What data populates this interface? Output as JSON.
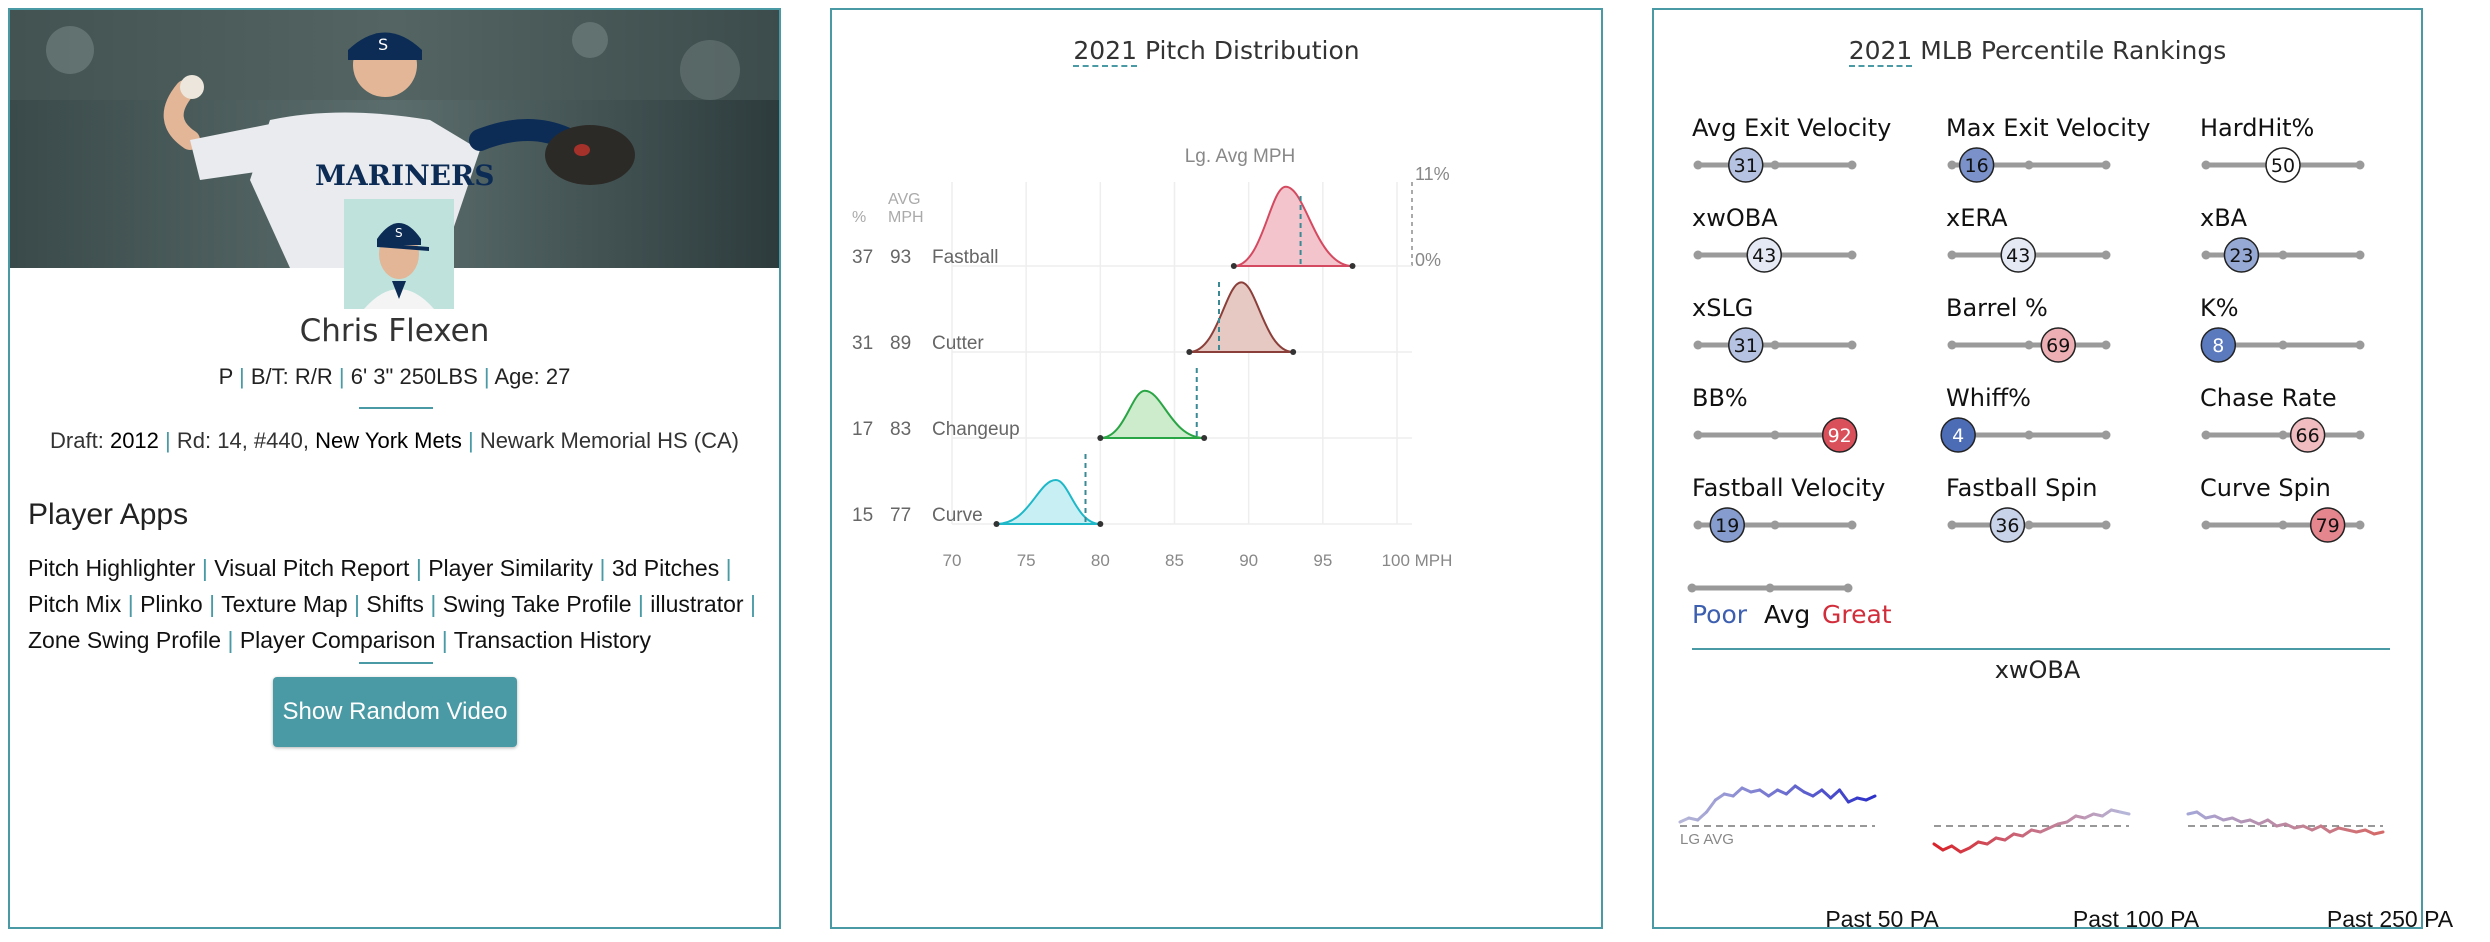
{
  "profile": {
    "name": "Chris Flexen",
    "bio": {
      "position": "P",
      "bt_label": "B/T:",
      "bt": "R/R",
      "height_weight": "6' 3\" 250LBS",
      "age_label": "Age:",
      "age": "27"
    },
    "draft": {
      "label": "Draft:",
      "year": "2012",
      "round_pick": "Rd: 14, #440,",
      "team": "New York Mets",
      "school": "Newark Memorial HS (CA)"
    },
    "jersey_text": "MARINERS",
    "cap_letter": "S"
  },
  "apps": {
    "title": "Player Apps",
    "links": [
      "Pitch Highlighter",
      "Visual Pitch Report",
      "Player Similarity",
      "3d Pitches",
      "Pitch Mix",
      "Plinko",
      "Texture Map",
      "Shifts",
      "Swing Take Profile",
      "illustrator",
      "Zone Swing Profile",
      "Player Comparison",
      "Transaction History"
    ]
  },
  "video_button": "Show Random Video",
  "pitch_dist": {
    "title_year": "2021",
    "title_rest": " Pitch Distribution",
    "lg_avg_label": "Lg. Avg MPH",
    "col_pct": "%",
    "col_avg": "AVG",
    "col_mph": "MPH",
    "scale_max": "11%",
    "scale_min": "0%",
    "xaxis_unit": "MPH"
  },
  "chart_data": {
    "type": "area",
    "title": "2021 Pitch Distribution",
    "xlabel": "MPH",
    "xlim": [
      70,
      100
    ],
    "x_ticks": [
      "70",
      "75",
      "80",
      "85",
      "90",
      "95",
      "100 MPH"
    ],
    "density_range": [
      "0%",
      "11%"
    ],
    "series": [
      {
        "name": "Fastball",
        "pct": 37,
        "avg_mph": 93,
        "lg_avg_mph": 93.5,
        "min": 89,
        "max": 97,
        "peak": 92.5,
        "color": "#d44a60",
        "fill": "#f3c4cc"
      },
      {
        "name": "Cutter",
        "pct": 31,
        "avg_mph": 89,
        "lg_avg_mph": 88,
        "min": 86,
        "max": 93,
        "peak": 89.5,
        "color": "#8b3f3a",
        "fill": "#e6c9c2"
      },
      {
        "name": "Changeup",
        "pct": 17,
        "avg_mph": 83,
        "lg_avg_mph": 86.5,
        "min": 80,
        "max": 87,
        "peak": 83,
        "color": "#2aa545",
        "fill": "#cdeccb"
      },
      {
        "name": "Curve",
        "pct": 15,
        "avg_mph": 77,
        "lg_avg_mph": 79,
        "min": 73,
        "max": 80,
        "peak": 77,
        "color": "#1fb8c8",
        "fill": "#c8f0f4"
      }
    ]
  },
  "percentile": {
    "title_year": "2021",
    "title_rest": " MLB Percentile Rankings",
    "colors": {
      "poor": "#3c5fb0",
      "avg": "#ffffff",
      "great": "#d22d3a"
    },
    "metrics": [
      {
        "label": "Avg Exit Velocity",
        "value": 31
      },
      {
        "label": "Max Exit Velocity",
        "value": 16
      },
      {
        "label": "HardHit%",
        "value": 50
      },
      {
        "label": "xwOBA",
        "value": 43
      },
      {
        "label": "xERA",
        "value": 43
      },
      {
        "label": "xBA",
        "value": 23
      },
      {
        "label": "xSLG",
        "value": 31
      },
      {
        "label": "Barrel %",
        "value": 69
      },
      {
        "label": "K%",
        "value": 8
      },
      {
        "label": "BB%",
        "value": 92
      },
      {
        "label": "Whiff%",
        "value": 4
      },
      {
        "label": "Chase Rate",
        "value": 66
      },
      {
        "label": "Fastball Velocity",
        "value": 19
      },
      {
        "label": "Fastball Spin",
        "value": 36
      },
      {
        "label": "Curve Spin",
        "value": 79
      }
    ],
    "legend": {
      "poor": "Poor",
      "avg": "Avg",
      "great": "Great"
    },
    "xwoba_title": "xwOBA",
    "lg_avg_label": "LG AVG",
    "past": [
      "Past 50 PA",
      "Past 100 PA",
      "Past 250 PA"
    ]
  }
}
